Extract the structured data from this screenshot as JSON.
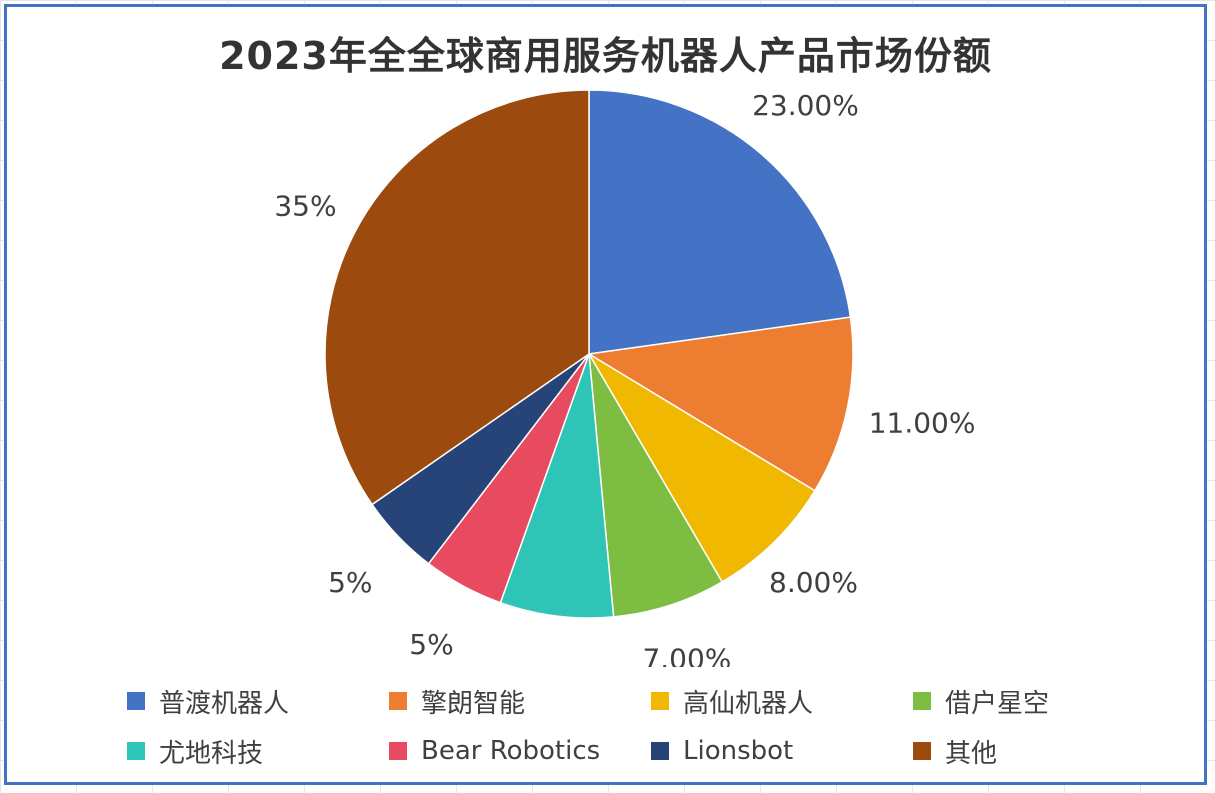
{
  "chart_data": {
    "type": "pie",
    "title": "2023年全全球商用服务机器人产品市场份额",
    "legend_position": "bottom",
    "slices": [
      {
        "name": "普渡机器人",
        "value": 23,
        "label": "23.00%",
        "color": "#4472c4"
      },
      {
        "name": "擎朗智能",
        "value": 11,
        "label": "11.00%",
        "color": "#ed7d31"
      },
      {
        "name": "高仙机器人",
        "value": 8,
        "label": "8.00%",
        "color": "#f0b800"
      },
      {
        "name": "借户星空",
        "value": 7,
        "label": "7.00%",
        "color": "#7cbd42"
      },
      {
        "name": "尤地科技",
        "value": 7,
        "label": "7.00%",
        "color": "#2ec4b6"
      },
      {
        "name": "Bear Robotics",
        "value": 5,
        "label": "5%",
        "color": "#e84a5f"
      },
      {
        "name": "Lionsbot",
        "value": 5,
        "label": "5%",
        "color": "#264478"
      },
      {
        "name": "其他",
        "value": 35,
        "label": "35%",
        "color": "#9c4a0e"
      }
    ]
  }
}
